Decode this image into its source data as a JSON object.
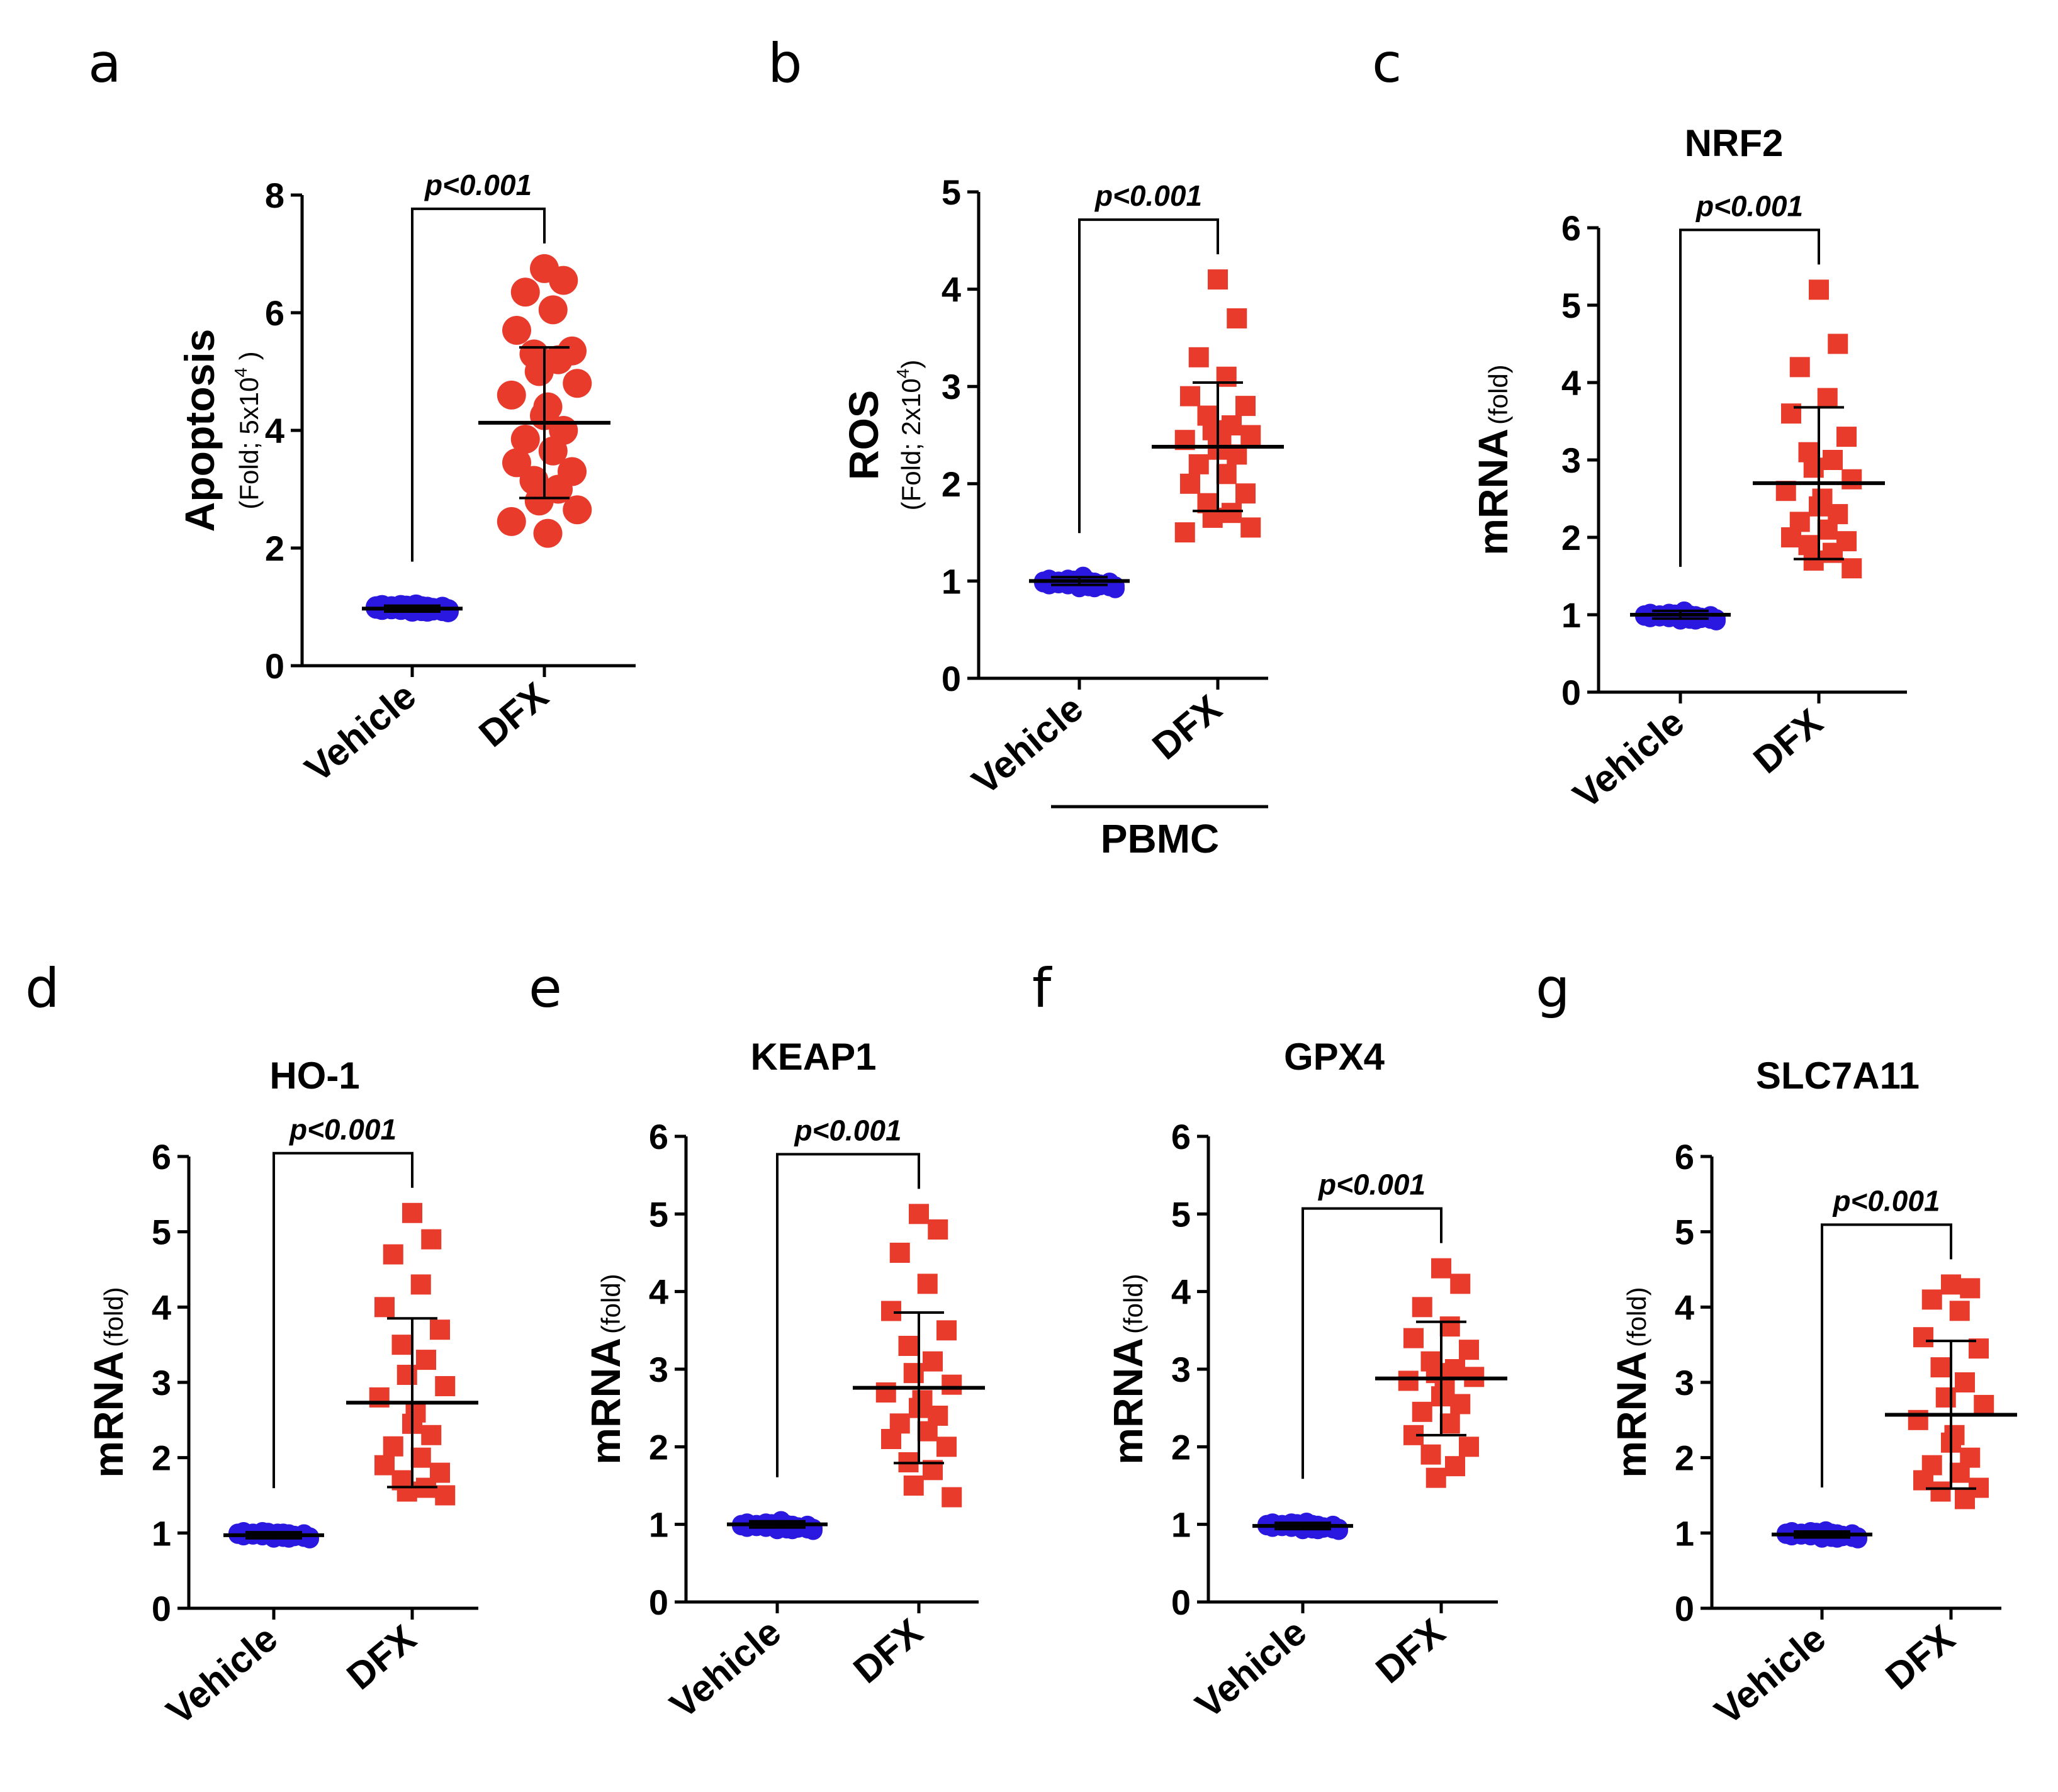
{
  "colors": {
    "vehicle": "#2a17e0",
    "dfx": "#e83b2c",
    "axis": "#000000"
  },
  "chart_data": [
    {
      "letter": "a",
      "type": "scatter",
      "title": "",
      "ylabel": "Apoptosis",
      "ysub": "(Fold; 5x10",
      "ysub_sup": "4",
      "ysub_end": " )",
      "ylim": [
        0,
        8
      ],
      "yticks": [
        0,
        2,
        4,
        6,
        8
      ],
      "categories": [
        "Vehicle",
        "DFX"
      ],
      "marker": "circle",
      "pvalue": "p<0.001",
      "group_label": "",
      "series": [
        {
          "name": "Vehicle",
          "mean": 0.97,
          "sd": 0.05,
          "values": [
            0.93,
            0.95,
            0.97,
            1.0,
            1.02,
            0.94,
            0.96,
            0.99,
            1.01,
            0.92,
            0.98,
            1.03,
            0.95,
            0.97,
            1.0,
            0.94,
            0.96,
            0.99,
            1.02,
            0.93,
            0.98,
            0.95,
            1.0,
            0.97
          ]
        },
        {
          "name": "DFX",
          "mean": 4.13,
          "sd": 1.28,
          "values": [
            6.75,
            6.55,
            6.35,
            6.05,
            5.7,
            5.35,
            5.3,
            5.2,
            5.0,
            4.8,
            4.6,
            4.4,
            4.25,
            4.0,
            3.85,
            3.65,
            3.45,
            3.3,
            3.15,
            3.0,
            2.8,
            2.65,
            2.45,
            2.25
          ]
        }
      ]
    },
    {
      "letter": "b",
      "type": "scatter",
      "title": "",
      "ylabel": "ROS",
      "ysub": "(Fold; 2x10",
      "ysub_sup": "4",
      "ysub_end": ")",
      "ylim": [
        0,
        5
      ],
      "yticks": [
        0,
        1,
        2,
        3,
        4,
        5
      ],
      "categories": [
        "Vehicle",
        "DFX"
      ],
      "marker": "square",
      "pvalue": "p<0.001",
      "group_label": "PBMC",
      "series": [
        {
          "name": "Vehicle",
          "mean": 1.0,
          "sd": 0.04,
          "values": [
            0.93,
            0.95,
            0.97,
            1.0,
            1.02,
            0.94,
            0.96,
            0.99,
            1.01,
            0.92,
            0.98,
            1.03,
            0.95,
            0.97,
            1.0,
            0.94,
            0.96,
            0.99,
            1.02,
            0.93,
            0.98,
            0.95,
            1.0,
            1.05
          ]
        },
        {
          "name": "DFX",
          "mean": 2.38,
          "sd": 0.66,
          "values": [
            4.1,
            3.7,
            3.3,
            3.1,
            2.9,
            2.8,
            2.7,
            2.6,
            2.55,
            2.5,
            2.45,
            2.4,
            2.35,
            2.3,
            2.2,
            2.1,
            2.0,
            1.9,
            1.8,
            1.7,
            1.65,
            1.55,
            1.5
          ]
        }
      ]
    },
    {
      "letter": "c",
      "type": "scatter",
      "title": "NRF2",
      "ylabel": "mRNA",
      "ysub": "(fold)",
      "ysub_sup": "",
      "ysub_end": "",
      "ylim": [
        0,
        6
      ],
      "yticks": [
        0,
        1,
        2,
        3,
        4,
        5,
        6
      ],
      "categories": [
        "Vehicle",
        "DFX"
      ],
      "marker": "square",
      "pvalue": "p<0.001",
      "group_label": "",
      "series": [
        {
          "name": "Vehicle",
          "mean": 1.0,
          "sd": 0.05,
          "values": [
            0.93,
            0.95,
            0.97,
            1.0,
            1.02,
            0.94,
            0.96,
            0.99,
            1.01,
            0.92,
            0.98,
            1.03,
            0.95,
            0.97,
            1.0,
            0.94,
            0.96,
            0.99,
            1.02,
            0.93,
            0.98,
            0.95,
            1.0,
            1.05
          ]
        },
        {
          "name": "DFX",
          "mean": 2.7,
          "sd": 0.98,
          "values": [
            5.2,
            4.5,
            4.2,
            3.8,
            3.6,
            3.3,
            3.1,
            3.0,
            2.9,
            2.75,
            2.6,
            2.5,
            2.4,
            2.3,
            2.2,
            2.1,
            2.0,
            1.95,
            1.9,
            1.8,
            1.7,
            1.6
          ]
        }
      ]
    },
    {
      "letter": "d",
      "type": "scatter",
      "title": "HO-1",
      "ylabel": "mRNA",
      "ysub": "(fold)",
      "ysub_sup": "",
      "ysub_end": "",
      "ylim": [
        0,
        6
      ],
      "yticks": [
        0,
        1,
        2,
        3,
        4,
        5,
        6
      ],
      "categories": [
        "Vehicle",
        "DFX"
      ],
      "marker": "square",
      "pvalue": "p<0.001",
      "group_label": "",
      "series": [
        {
          "name": "Vehicle",
          "mean": 0.97,
          "sd": 0.04,
          "values": [
            0.93,
            0.95,
            0.97,
            1.0,
            1.02,
            0.94,
            0.96,
            0.99,
            1.01,
            0.92,
            0.98,
            1.0,
            0.95,
            0.97,
            1.0,
            0.94,
            0.96,
            0.99,
            1.02,
            0.93,
            0.98,
            0.95,
            1.0,
            0.97
          ]
        },
        {
          "name": "DFX",
          "mean": 2.73,
          "sd": 1.12,
          "values": [
            5.25,
            4.9,
            4.7,
            4.3,
            4.0,
            3.7,
            3.5,
            3.3,
            3.1,
            2.95,
            2.8,
            2.6,
            2.45,
            2.3,
            2.15,
            2.0,
            1.9,
            1.8,
            1.7,
            1.6,
            1.55,
            1.5
          ]
        }
      ]
    },
    {
      "letter": "e",
      "type": "scatter",
      "title": "KEAP1",
      "ylabel": "mRNA",
      "ysub": "(fold)",
      "ysub_sup": "",
      "ysub_end": "",
      "ylim": [
        0,
        6
      ],
      "yticks": [
        0,
        1,
        2,
        3,
        4,
        5,
        6
      ],
      "categories": [
        "Vehicle",
        "DFX"
      ],
      "marker": "square",
      "pvalue": "p<0.001",
      "group_label": "",
      "series": [
        {
          "name": "Vehicle",
          "mean": 1.0,
          "sd": 0.04,
          "values": [
            0.93,
            0.95,
            0.97,
            1.0,
            1.02,
            0.94,
            0.96,
            0.99,
            1.01,
            0.92,
            0.98,
            1.03,
            0.95,
            0.97,
            1.0,
            0.94,
            0.96,
            0.99,
            1.02,
            0.93,
            0.98,
            0.95,
            1.0,
            1.05
          ]
        },
        {
          "name": "DFX",
          "mean": 2.76,
          "sd": 0.97,
          "values": [
            5.0,
            4.8,
            4.5,
            4.1,
            3.75,
            3.5,
            3.3,
            3.1,
            2.95,
            2.8,
            2.7,
            2.6,
            2.5,
            2.4,
            2.3,
            2.2,
            2.1,
            2.0,
            1.8,
            1.7,
            1.5,
            1.35
          ]
        }
      ]
    },
    {
      "letter": "f",
      "type": "scatter",
      "title": "GPX4",
      "ylabel": "mRNA",
      "ysub": "(fold)",
      "ysub_sup": "",
      "ysub_end": "",
      "ylim": [
        0,
        6
      ],
      "yticks": [
        0,
        1,
        2,
        3,
        4,
        5,
        6
      ],
      "categories": [
        "Vehicle",
        "DFX"
      ],
      "marker": "square",
      "pvalue": "p<0.001",
      "group_label": "",
      "series": [
        {
          "name": "Vehicle",
          "mean": 0.98,
          "sd": 0.04,
          "values": [
            0.93,
            0.95,
            0.97,
            1.0,
            1.02,
            0.94,
            0.96,
            0.99,
            1.01,
            0.92,
            0.98,
            1.03,
            0.95,
            0.97,
            1.0,
            0.94,
            0.96,
            0.99,
            1.02,
            0.93,
            0.98,
            0.95,
            1.0,
            0.97
          ]
        },
        {
          "name": "DFX",
          "mean": 2.88,
          "sd": 0.73,
          "values": [
            4.3,
            4.1,
            3.8,
            3.55,
            3.4,
            3.25,
            3.1,
            3.0,
            2.95,
            2.9,
            2.85,
            2.75,
            2.65,
            2.55,
            2.45,
            2.3,
            2.15,
            2.0,
            1.9,
            1.75,
            1.6
          ]
        }
      ]
    },
    {
      "letter": "g",
      "type": "scatter",
      "title": "SLC7A11",
      "ylabel": "mRNA",
      "ysub": "(fold)",
      "ysub_sup": "",
      "ysub_end": "",
      "ylim": [
        0,
        6
      ],
      "yticks": [
        0,
        1,
        2,
        3,
        4,
        5,
        6
      ],
      "categories": [
        "Vehicle",
        "DFX"
      ],
      "marker": "square",
      "pvalue": "p<0.001",
      "group_label": "",
      "series": [
        {
          "name": "Vehicle",
          "mean": 0.98,
          "sd": 0.04,
          "values": [
            0.93,
            0.95,
            0.97,
            1.0,
            1.02,
            0.94,
            0.96,
            0.99,
            1.01,
            0.92,
            0.98,
            1.03,
            0.95,
            0.97,
            1.0,
            0.94,
            0.96,
            0.99,
            1.02,
            0.93,
            0.98,
            0.95,
            1.0,
            0.97
          ]
        },
        {
          "name": "DFX",
          "mean": 2.57,
          "sd": 0.98,
          "values": [
            4.3,
            4.25,
            4.1,
            3.95,
            3.6,
            3.45,
            3.2,
            3.0,
            2.8,
            2.7,
            2.5,
            2.3,
            2.2,
            2.0,
            1.9,
            1.8,
            1.7,
            1.6,
            1.55,
            1.45
          ]
        }
      ]
    }
  ]
}
